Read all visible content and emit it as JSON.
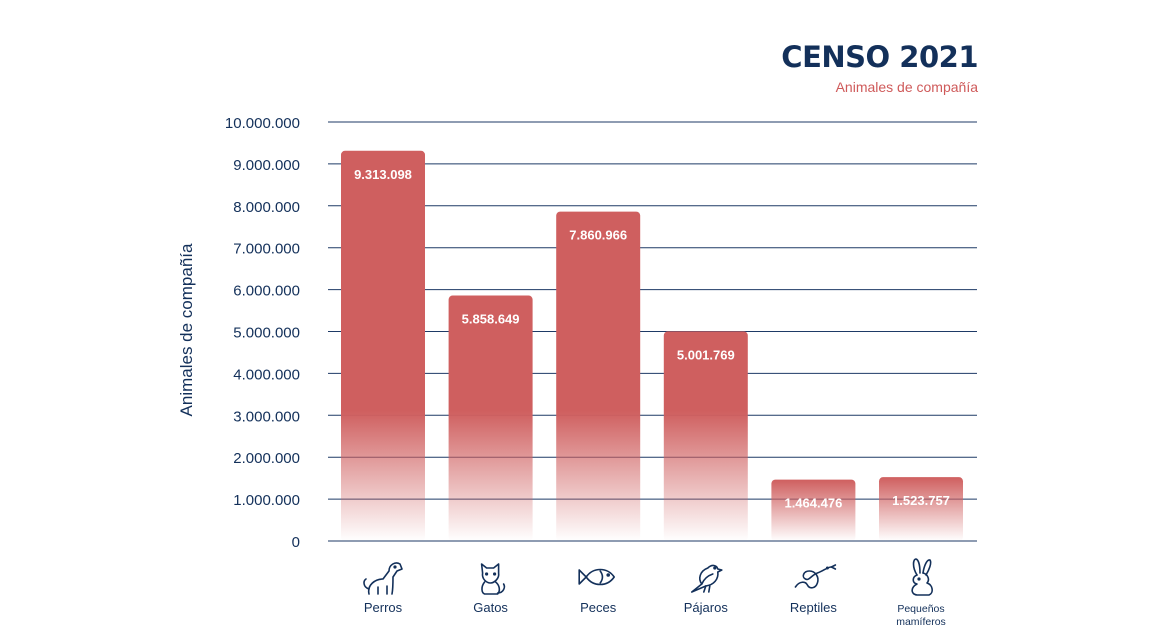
{
  "chart_data": {
    "type": "bar",
    "title": "CENSO 2021",
    "subtitle": "Animales de compañía",
    "ylabel": "Animales de compañía",
    "xlabel": "",
    "ylim": [
      0,
      10000000
    ],
    "yticks": [
      0,
      1000000,
      2000000,
      3000000,
      4000000,
      5000000,
      6000000,
      7000000,
      8000000,
      9000000,
      10000000
    ],
    "ytick_labels": [
      "0",
      "1.000.000",
      "2.000.000",
      "3.000.000",
      "4.000.000",
      "5.000.000",
      "6.000.000",
      "7.000.000",
      "8.000.000",
      "9.000.000",
      "10.000.000"
    ],
    "categories": [
      "Perros",
      "Gatos",
      "Peces",
      "Pájaros",
      "Reptiles",
      "Pequeños mamíferos"
    ],
    "category_lines": [
      [
        "Perros"
      ],
      [
        "Gatos"
      ],
      [
        "Peces"
      ],
      [
        "Pájaros"
      ],
      [
        "Reptiles"
      ],
      [
        "Pequeños",
        "mamíferos"
      ]
    ],
    "icons": [
      "dog-icon",
      "cat-icon",
      "fish-icon",
      "bird-icon",
      "snake-icon",
      "rabbit-icon"
    ],
    "values": [
      9313098,
      5858649,
      7860966,
      5001769,
      1464476,
      1523757
    ],
    "value_labels": [
      "9.313.098",
      "5.858.649",
      "7.860.966",
      "5.001.769",
      "1.464.476",
      "1.523.757"
    ],
    "grid": true,
    "colors": {
      "bar": "#cf5f5f",
      "axis_text": "#13305a",
      "grid": "#1e3a66",
      "value_text": "#ffffff"
    }
  }
}
